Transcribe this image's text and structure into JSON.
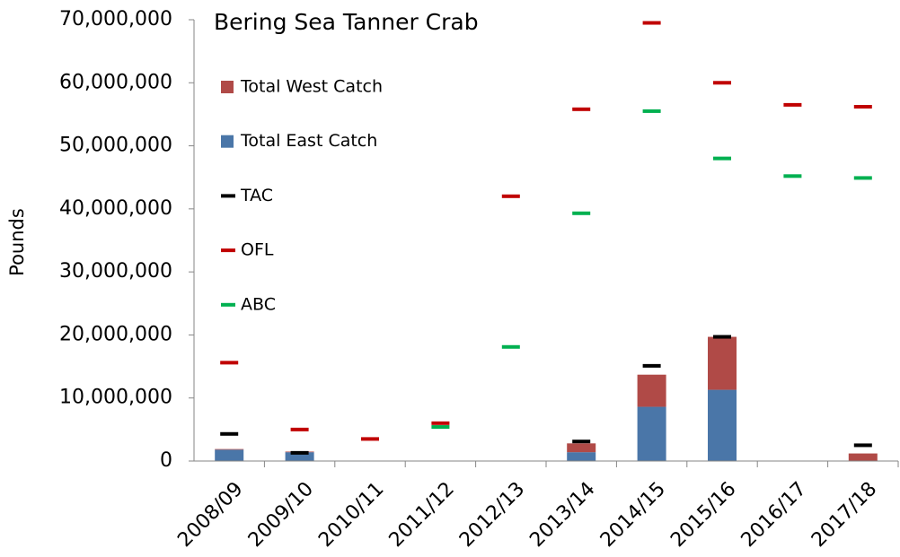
{
  "chart_data": {
    "type": "bar",
    "title": "Bering Sea Tanner Crab",
    "y_label": "Pounds",
    "categories": [
      "2008/09",
      "2009/10",
      "2010/11",
      "2011/12",
      "2012/13",
      "2013/14",
      "2014/15",
      "2015/16",
      "2016/17",
      "2017/18"
    ],
    "series": [
      {
        "name": "Total West Catch",
        "color": "#b04a47",
        "style": "bar",
        "values": [
          100000,
          100000,
          0,
          0,
          0,
          1400000,
          5100000,
          8400000,
          0,
          1200000
        ]
      },
      {
        "name": "Total East Catch",
        "color": "#4a76a8",
        "style": "bar",
        "values": [
          1800000,
          1400000,
          0,
          0,
          0,
          1400000,
          8600000,
          11300000,
          0,
          0
        ]
      },
      {
        "name": "TAC",
        "color": "#000000",
        "style": "dash",
        "values": [
          4300000,
          1300000,
          null,
          null,
          null,
          3100000,
          15100000,
          19700000,
          null,
          2500000
        ]
      },
      {
        "name": "OFL",
        "color": "#c00000",
        "style": "dash",
        "values": [
          15600000,
          5000000,
          3500000,
          6000000,
          42000000,
          55800000,
          69500000,
          60000000,
          56500000,
          56200000
        ]
      },
      {
        "name": "ABC",
        "color": "#00b050",
        "style": "dash",
        "values": [
          null,
          null,
          null,
          5400000,
          18100000,
          39300000,
          55500000,
          48000000,
          45200000,
          44900000
        ]
      }
    ],
    "ylim": [
      0,
      70000000
    ],
    "yticks": [
      0,
      {
        "value": 10000000,
        "label": "10,000,000"
      },
      {
        "value": 20000000,
        "label": "20,000,000"
      },
      {
        "value": 30000000,
        "label": "30,000,000"
      },
      {
        "value": 40000000,
        "label": "40,000,000"
      },
      {
        "value": 50000000,
        "label": "50,000,000"
      },
      {
        "value": 60000000,
        "label": "60,000,000"
      },
      {
        "value": 70000000,
        "label": "70,000,000"
      }
    ],
    "grid": false
  }
}
